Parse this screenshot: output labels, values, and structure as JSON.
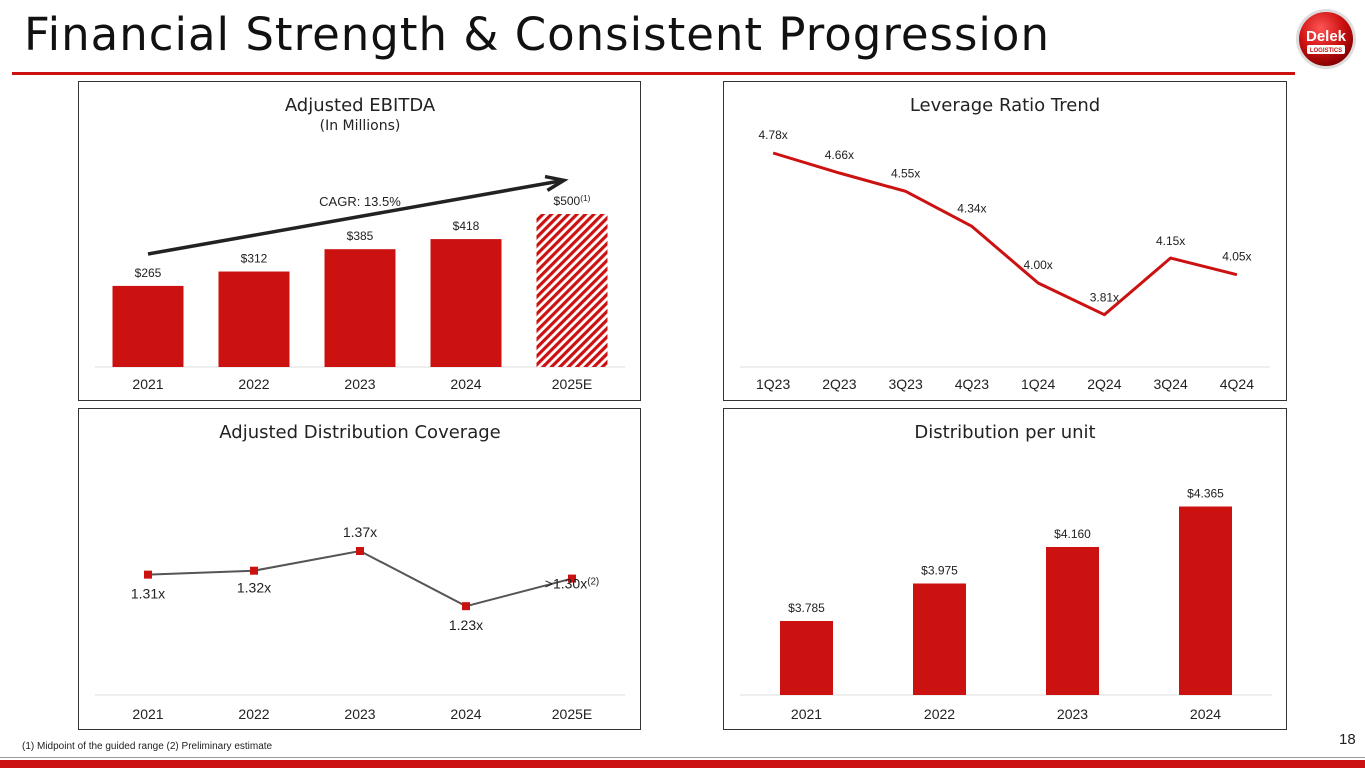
{
  "page": {
    "title": "Financial Strength & Consistent Progression",
    "footnote": "(1) Midpoint of the guided range (2) Preliminary estimate",
    "page_number": "18",
    "logo": {
      "text": "Delek",
      "subtext": "LOGISTICS"
    }
  },
  "colors": {
    "accent": "#cc1111",
    "line_gray": "#555555",
    "axis": "#dddddd"
  },
  "chart_data": [
    {
      "id": "ebitda",
      "type": "bar",
      "title": "Adjusted EBITDA",
      "subtitle": "(In Millions)",
      "categories": [
        "2021",
        "2022",
        "2023",
        "2024",
        "2025E"
      ],
      "values": [
        265,
        312,
        385,
        418,
        500
      ],
      "labels": [
        "$265",
        "$312",
        "$385",
        "$418",
        "$500"
      ],
      "label_superscripts": [
        "",
        "",
        "",
        "",
        "(1)"
      ],
      "hatched": [
        false,
        false,
        false,
        false,
        true
      ],
      "ylim": [
        0,
        560
      ],
      "annotation": "CAGR: 13.5%"
    },
    {
      "id": "leverage",
      "type": "line",
      "title": "Leverage Ratio Trend",
      "categories": [
        "1Q23",
        "2Q23",
        "3Q23",
        "4Q23",
        "1Q24",
        "2Q24",
        "3Q24",
        "4Q24"
      ],
      "values": [
        4.78,
        4.66,
        4.55,
        4.34,
        4.0,
        3.81,
        4.15,
        4.05
      ],
      "labels": [
        "4.78x",
        "4.66x",
        "4.55x",
        "4.34x",
        "4.00x",
        "3.81x",
        "4.15x",
        "4.05x"
      ],
      "ylim": [
        3.0,
        5.0
      ]
    },
    {
      "id": "coverage",
      "type": "line",
      "title": "Adjusted Distribution Coverage",
      "categories": [
        "2021",
        "2022",
        "2023",
        "2024",
        "2025E"
      ],
      "values": [
        1.31,
        1.32,
        1.37,
        1.23,
        1.3
      ],
      "labels": [
        "1.31x",
        "1.32x",
        "1.37x",
        "1.23x",
        ">1.30x"
      ],
      "label_superscripts": [
        "",
        "",
        "",
        "",
        "(2)"
      ],
      "ylim": [
        1.0,
        1.6
      ]
    },
    {
      "id": "dpu",
      "type": "bar",
      "title": "Distribution per unit",
      "categories": [
        "2021",
        "2022",
        "2023",
        "2024"
      ],
      "values": [
        3.785,
        3.975,
        4.16,
        4.365
      ],
      "labels": [
        "$3.785",
        "$3.975",
        "$4.160",
        "$4.365"
      ],
      "ylim": [
        3.4,
        4.5
      ]
    }
  ]
}
